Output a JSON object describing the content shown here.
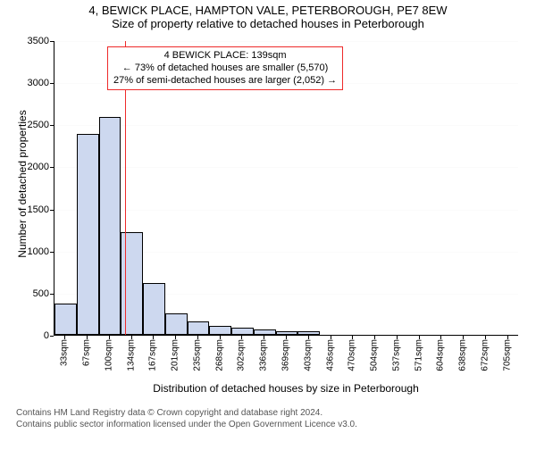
{
  "titles": {
    "line1": "4, BEWICK PLACE, HAMPTON VALE, PETERBOROUGH, PE7 8EW",
    "line2": "Size of property relative to detached houses in Peterborough"
  },
  "chart": {
    "type": "histogram",
    "background_color": "#ffffff",
    "grid_color": "#e0e0e0",
    "bar_fill": "#cdd8ef",
    "bar_border": "#000000",
    "marker_color": "#ee2a2a",
    "ylabel": "Number of detached properties",
    "xlabel": "Distribution of detached houses by size in Peterborough",
    "ylim": [
      0,
      3500
    ],
    "ytick_step": 500,
    "x_categories": [
      "33sqm",
      "67sqm",
      "100sqm",
      "134sqm",
      "167sqm",
      "201sqm",
      "235sqm",
      "268sqm",
      "302sqm",
      "336sqm",
      "369sqm",
      "403sqm",
      "436sqm",
      "470sqm",
      "504sqm",
      "537sqm",
      "571sqm",
      "604sqm",
      "638sqm",
      "672sqm",
      "705sqm"
    ],
    "values": [
      370,
      2390,
      2590,
      1220,
      620,
      250,
      160,
      110,
      80,
      60,
      45,
      40,
      0,
      0,
      0,
      0,
      0,
      0,
      0,
      0,
      0
    ],
    "marker_x_index": 3.18,
    "bar_gap_ratio": 0.0
  },
  "annotation": {
    "border_color": "#ee2a2a",
    "background": "#ffffff",
    "lines": [
      "4 BEWICK PLACE: 139sqm",
      "← 73% of detached houses are smaller (5,570)",
      "27% of semi-detached houses are larger (2,052) →"
    ]
  },
  "footer": {
    "line1": "Contains HM Land Registry data © Crown copyright and database right 2024.",
    "line2": "Contains public sector information licensed under the Open Government Licence v3.0."
  }
}
